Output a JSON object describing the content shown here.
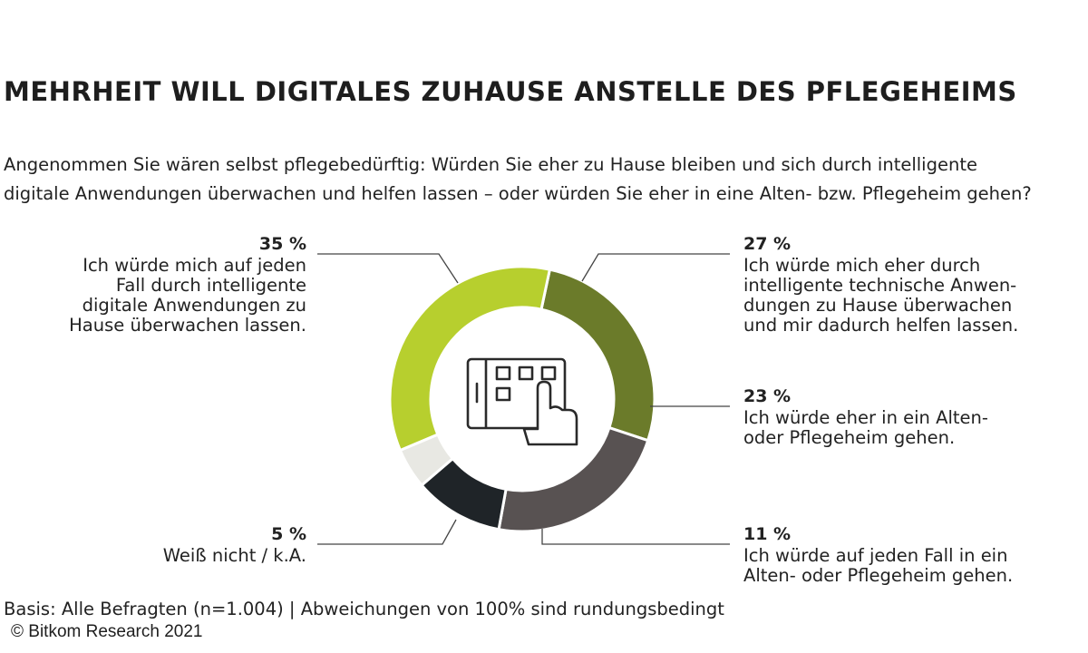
{
  "title": "MEHRHEIT WILL DIGITALES ZUHAUSE ANSTELLE DES PFLEGEHEIMS",
  "question_lines": [
    "Angenommen Sie wären selbst pflegebedürftig: Würden Sie eher zu Hause bleiben und sich durch intelligente",
    "digitale Anwendungen überwachen und helfen lassen – oder würden Sie eher in eine Alten- bzw. Pflegeheim gehen?"
  ],
  "chart_data": {
    "type": "pie",
    "variant": "donut",
    "title": "Mehrheit will digitales Zuhause anstelle des Pflegeheims",
    "center_icon": "tablet-touch-icon",
    "slices": [
      {
        "id": "tech",
        "value": 27,
        "pct_label": "27 %",
        "color": "#6b7b2a",
        "lines": [
          "Ich würde mich eher durch",
          "intelligente technische Anwen-",
          "dungen zu Hause überwachen",
          "und mir dadurch helfen lassen."
        ]
      },
      {
        "id": "eher",
        "value": 23,
        "pct_label": "23 %",
        "color": "#585252",
        "lines": [
          "Ich würde eher in ein Alten-",
          "oder Pflegeheim gehen."
        ]
      },
      {
        "id": "jedenfall",
        "value": 11,
        "pct_label": "11 %",
        "color": "#1f2428",
        "lines": [
          "Ich würde auf jeden Fall in ein",
          "Alten- oder Pflegeheim gehen."
        ]
      },
      {
        "id": "weissnicht",
        "value": 5,
        "pct_label": "5 %",
        "color": "#e8e8e3",
        "lines": [
          "Weiß nicht / k.A."
        ]
      },
      {
        "id": "digital",
        "value": 35,
        "pct_label": "35 %",
        "color": "#b7cf2e",
        "lines": [
          "Ich würde mich auf jeden",
          "Fall durch intelligente",
          "digitale Anwendungen zu",
          "Hause überwachen lassen."
        ]
      }
    ]
  },
  "footnote": "Basis: Alle Befragten (n=1.004) | Abweichungen von 100% sind rundungsbedingt",
  "copyright": "© Bitkom Research 2021"
}
